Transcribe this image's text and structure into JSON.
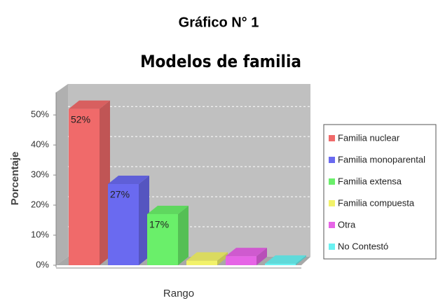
{
  "chart_data": {
    "type": "bar3d",
    "header": "Gráfico N° 1",
    "title": "Modelos de familia",
    "y_label": "Porcentaje",
    "x_label": "Rango",
    "series": [
      {
        "name": "Familia nuclear",
        "color": "#f06a6a",
        "values": [
          52
        ],
        "value_labels": [
          "52%"
        ]
      },
      {
        "name": "Familia monoparental",
        "color": "#6a6af0",
        "values": [
          27
        ],
        "value_labels": [
          "27%"
        ]
      },
      {
        "name": "Familia extensa",
        "color": "#6aef6a",
        "values": [
          17
        ],
        "value_labels": [
          "17%"
        ]
      },
      {
        "name": "Familia compuesta",
        "color": "#f2f26a",
        "values": [
          1.5
        ]
      },
      {
        "name": "Otra",
        "color": "#e664e6",
        "values": [
          3
        ]
      },
      {
        "name": "No Contestó",
        "color": "#6af2f2",
        "values": [
          0.5
        ]
      }
    ],
    "ylim": [
      0,
      57.5
    ],
    "yticks": [
      {
        "value": 0,
        "label": "0%"
      },
      {
        "value": 10,
        "label": "10%"
      },
      {
        "value": 20,
        "label": "20%"
      },
      {
        "value": 30,
        "label": "30%"
      },
      {
        "value": 40,
        "label": "40%"
      },
      {
        "value": 50,
        "label": "50%"
      }
    ],
    "grid": true,
    "legend": "right"
  }
}
